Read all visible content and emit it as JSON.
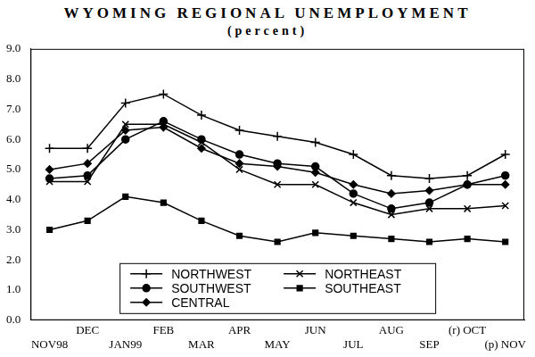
{
  "chart_data": {
    "type": "line",
    "title": "WYOMING REGIONAL UNEMPLOYMENT",
    "subtitle": "(percent)",
    "categories": [
      "NOV98",
      "DEC",
      "JAN99",
      "FEB",
      "MAR",
      "APR",
      "MAY",
      "JUN",
      "JUL",
      "AUG",
      "SEP",
      "(r) OCT",
      "(p) NOV"
    ],
    "series": [
      {
        "name": "NORTHWEST",
        "color": "#000000",
        "marker": "plus",
        "values": [
          5.7,
          5.7,
          7.2,
          7.5,
          6.8,
          6.3,
          6.1,
          5.9,
          5.5,
          4.8,
          4.7,
          4.8,
          5.5
        ]
      },
      {
        "name": "SOUTHWEST",
        "color": "#000000",
        "marker": "circle",
        "values": [
          4.7,
          4.8,
          6.0,
          6.6,
          6.0,
          5.5,
          5.2,
          5.1,
          4.2,
          3.7,
          3.9,
          4.5,
          4.8
        ]
      },
      {
        "name": "CENTRAL",
        "color": "#000000",
        "marker": "diamond",
        "values": [
          5.0,
          5.2,
          6.3,
          6.4,
          5.7,
          5.2,
          5.1,
          4.9,
          4.5,
          4.2,
          4.3,
          4.5,
          4.5
        ]
      },
      {
        "name": "NORTHEAST",
        "color": "#000000",
        "marker": "x",
        "values": [
          4.6,
          4.6,
          6.5,
          6.5,
          5.9,
          5.0,
          4.5,
          4.5,
          3.9,
          3.5,
          3.7,
          3.7,
          3.8
        ]
      },
      {
        "name": "SOUTHEAST",
        "color": "#000000",
        "marker": "square",
        "values": [
          3.0,
          3.3,
          4.1,
          3.9,
          3.3,
          2.8,
          2.6,
          2.9,
          2.8,
          2.7,
          2.6,
          2.7,
          2.6
        ]
      }
    ],
    "ylim": [
      0,
      9
    ],
    "yticks": [
      {
        "value": 0,
        "label": "0.0"
      },
      {
        "value": 1,
        "label": "1.0"
      },
      {
        "value": 2,
        "label": "2.0"
      },
      {
        "value": 3,
        "label": "3.0"
      },
      {
        "value": 4,
        "label": "4.0"
      },
      {
        "value": 5,
        "label": "5.0"
      },
      {
        "value": 6,
        "label": "6.0"
      },
      {
        "value": 7,
        "label": "7.0"
      },
      {
        "value": 8,
        "label": "8.0"
      },
      {
        "value": 9,
        "label": "9.0"
      }
    ],
    "grid": false,
    "legend": "bottom"
  }
}
